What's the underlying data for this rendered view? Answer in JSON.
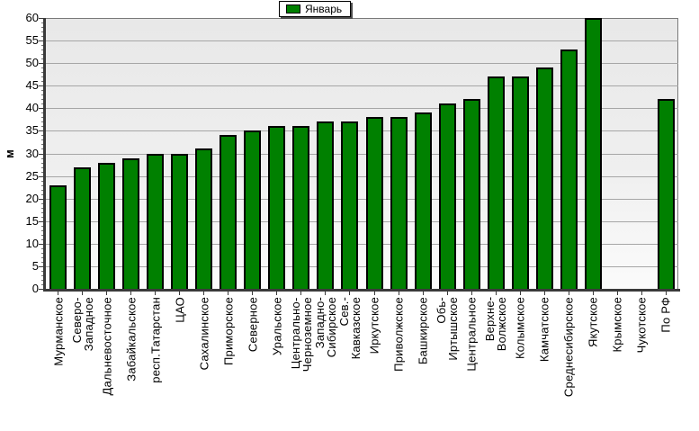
{
  "legend": {
    "label": "Январь",
    "marker_color": "#008000"
  },
  "colors": {
    "bar_fill": "#008000",
    "bar_border": "#000000",
    "grid_line": "#a6a6a6",
    "axis_line": "#3a3a3a",
    "plot_bg_top": "#e8e8e8",
    "plot_bg_bottom": "#fbfbfb",
    "page_bg": "#ffffff",
    "text": "#000000"
  },
  "chart_data": {
    "type": "bar",
    "title": "",
    "xlabel": "",
    "ylabel": "м",
    "ylim": [
      0,
      60
    ],
    "ytick_step": 5,
    "yticks": [
      0,
      5,
      10,
      15,
      20,
      25,
      30,
      35,
      40,
      45,
      50,
      55,
      60
    ],
    "grid": "horizontal",
    "legend_position": "top-center",
    "legend_entries": [
      "Январь"
    ],
    "categories": [
      "Мурманское",
      "Северо-\nЗападное",
      "Дальневосточное",
      "Забайкальское",
      "респ.Татарстан",
      "ЦАО",
      "Сахалинское",
      "Приморское",
      "Северное",
      "Уральское",
      "Центрально-\nЧерноземное",
      "Западно-\nСибирское",
      "Сев.-\nКавказское",
      "Иркутское",
      "Приволжское",
      "Башкирское",
      "Обь-\nИртышское",
      "Центральное",
      "Верхне-\nВолжское",
      "Колымское",
      "Камчатское",
      "Среднесибирское",
      "Якутское",
      "Крымское",
      "Чукотское",
      "По РФ"
    ],
    "series": [
      {
        "name": "Январь",
        "color": "#008000",
        "values": [
          23,
          27,
          28,
          29,
          30,
          30,
          31,
          34,
          35,
          36,
          36,
          37,
          37,
          38,
          38,
          39,
          41,
          42,
          47,
          47,
          49,
          53,
          60,
          null,
          null,
          42
        ]
      }
    ]
  }
}
